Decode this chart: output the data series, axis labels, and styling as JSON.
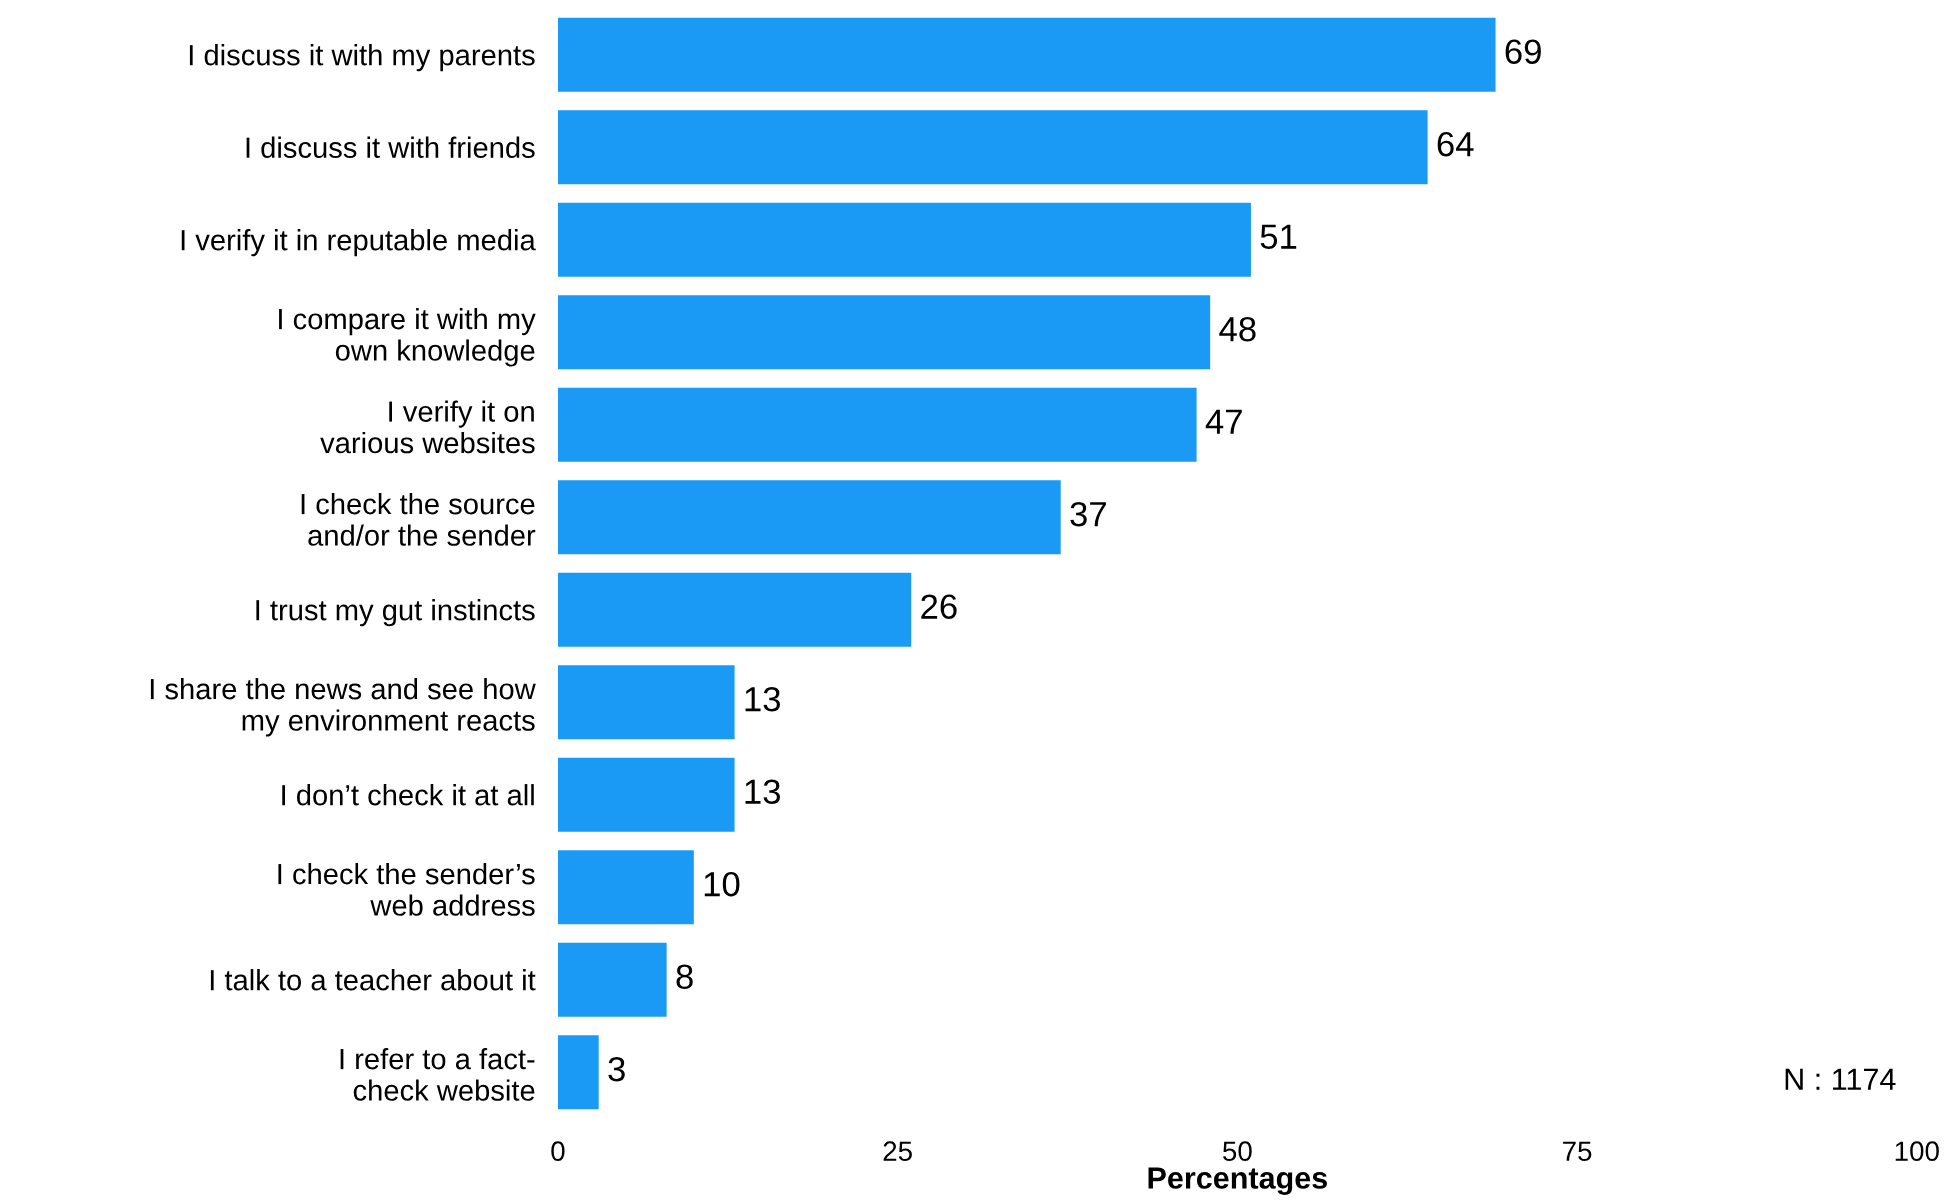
{
  "chart_data": {
    "type": "bar",
    "orientation": "horizontal",
    "xlabel": "Percentages",
    "categories": [
      "I discuss it with my parents",
      "I discuss it with friends",
      "I verify it in reputable media",
      "I compare it with my\nown knowledge",
      "I verify it on\nvarious websites",
      "I check the source\nand/or the sender",
      "I trust my gut instincts",
      "I share the news and see how\nmy environment reacts",
      "I don’t check it at all",
      "I check the sender’s\nweb address",
      "I talk to a teacher about it",
      "I refer to a fact-\ncheck website"
    ],
    "values": [
      69,
      64,
      51,
      48,
      47,
      37,
      26,
      13,
      13,
      10,
      8,
      3
    ],
    "color": "#1a9af5",
    "xlim": [
      0,
      100
    ],
    "xticks": [
      0,
      25,
      50,
      75,
      100
    ],
    "grid": false,
    "data_labels": true,
    "annotations": [
      "N : 1174"
    ]
  }
}
